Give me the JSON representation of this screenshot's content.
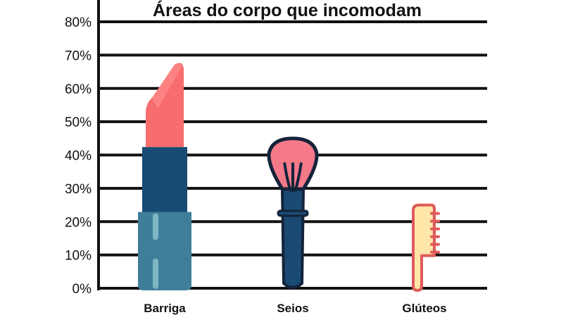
{
  "chart_data": {
    "type": "bar",
    "title": "Áreas do corpo que incomodam",
    "categories": [
      "Barriga",
      "Seios",
      "Glúteos"
    ],
    "values": [
      68,
      45,
      25
    ],
    "ylim": [
      0,
      80
    ],
    "yticks": [
      0,
      10,
      20,
      30,
      40,
      50,
      60,
      70,
      80
    ],
    "ytick_labels": [
      "0%",
      "10%",
      "20%",
      "30%",
      "40%",
      "50%",
      "60%",
      "70%",
      "80%"
    ],
    "grid": true,
    "legend": "none",
    "bar_icons": [
      "lipstick-icon",
      "makeup-brush-icon",
      "comb-icon"
    ],
    "colors": {
      "grid": "#111111",
      "lipstick_tip": "#f76c6c",
      "lipstick_collar": "#174a74",
      "lipstick_case": "#3f7e9a",
      "lipstick_highlight": "#7fb6c4",
      "brush_head": "#f47a8a",
      "brush_handle": "#1a4a73",
      "brush_outline": "#14233a",
      "comb_fill": "#fde6a8",
      "comb_outline": "#e05a5a"
    }
  }
}
